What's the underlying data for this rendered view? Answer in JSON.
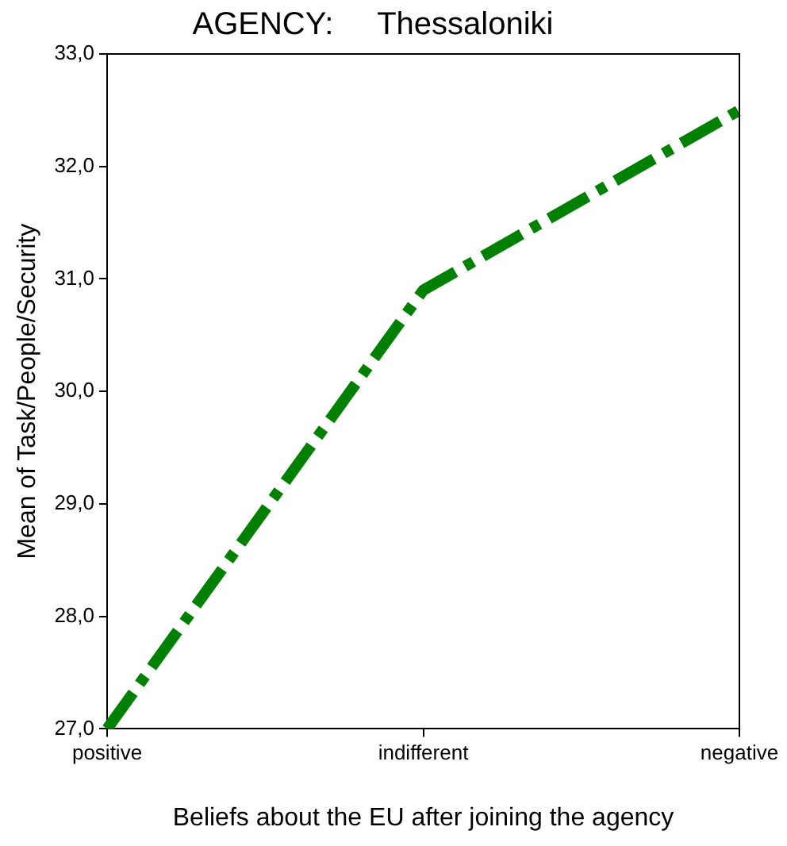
{
  "chart_data": {
    "type": "line",
    "title": "AGENCY:     Thessaloniki",
    "xlabel": "Beliefs about the EU after joining the agency",
    "ylabel": "Mean of Task/People/Security",
    "categories": [
      "positive",
      "indifferent",
      "negative"
    ],
    "series": [
      {
        "color": "#008000",
        "values": [
          27.0,
          30.9,
          32.5
        ]
      }
    ],
    "ylim": [
      27,
      33
    ],
    "yticks": [
      {
        "value": 27,
        "label": "27,0"
      },
      {
        "value": 28,
        "label": "28,0"
      },
      {
        "value": 29,
        "label": "29,0"
      },
      {
        "value": 30,
        "label": "30,0"
      },
      {
        "value": 31,
        "label": "31,0"
      },
      {
        "value": 32,
        "label": "32,0"
      },
      {
        "value": 33,
        "label": "33,0"
      }
    ],
    "grid": false,
    "legend": false,
    "marker": "none",
    "line_style": "dashed"
  }
}
